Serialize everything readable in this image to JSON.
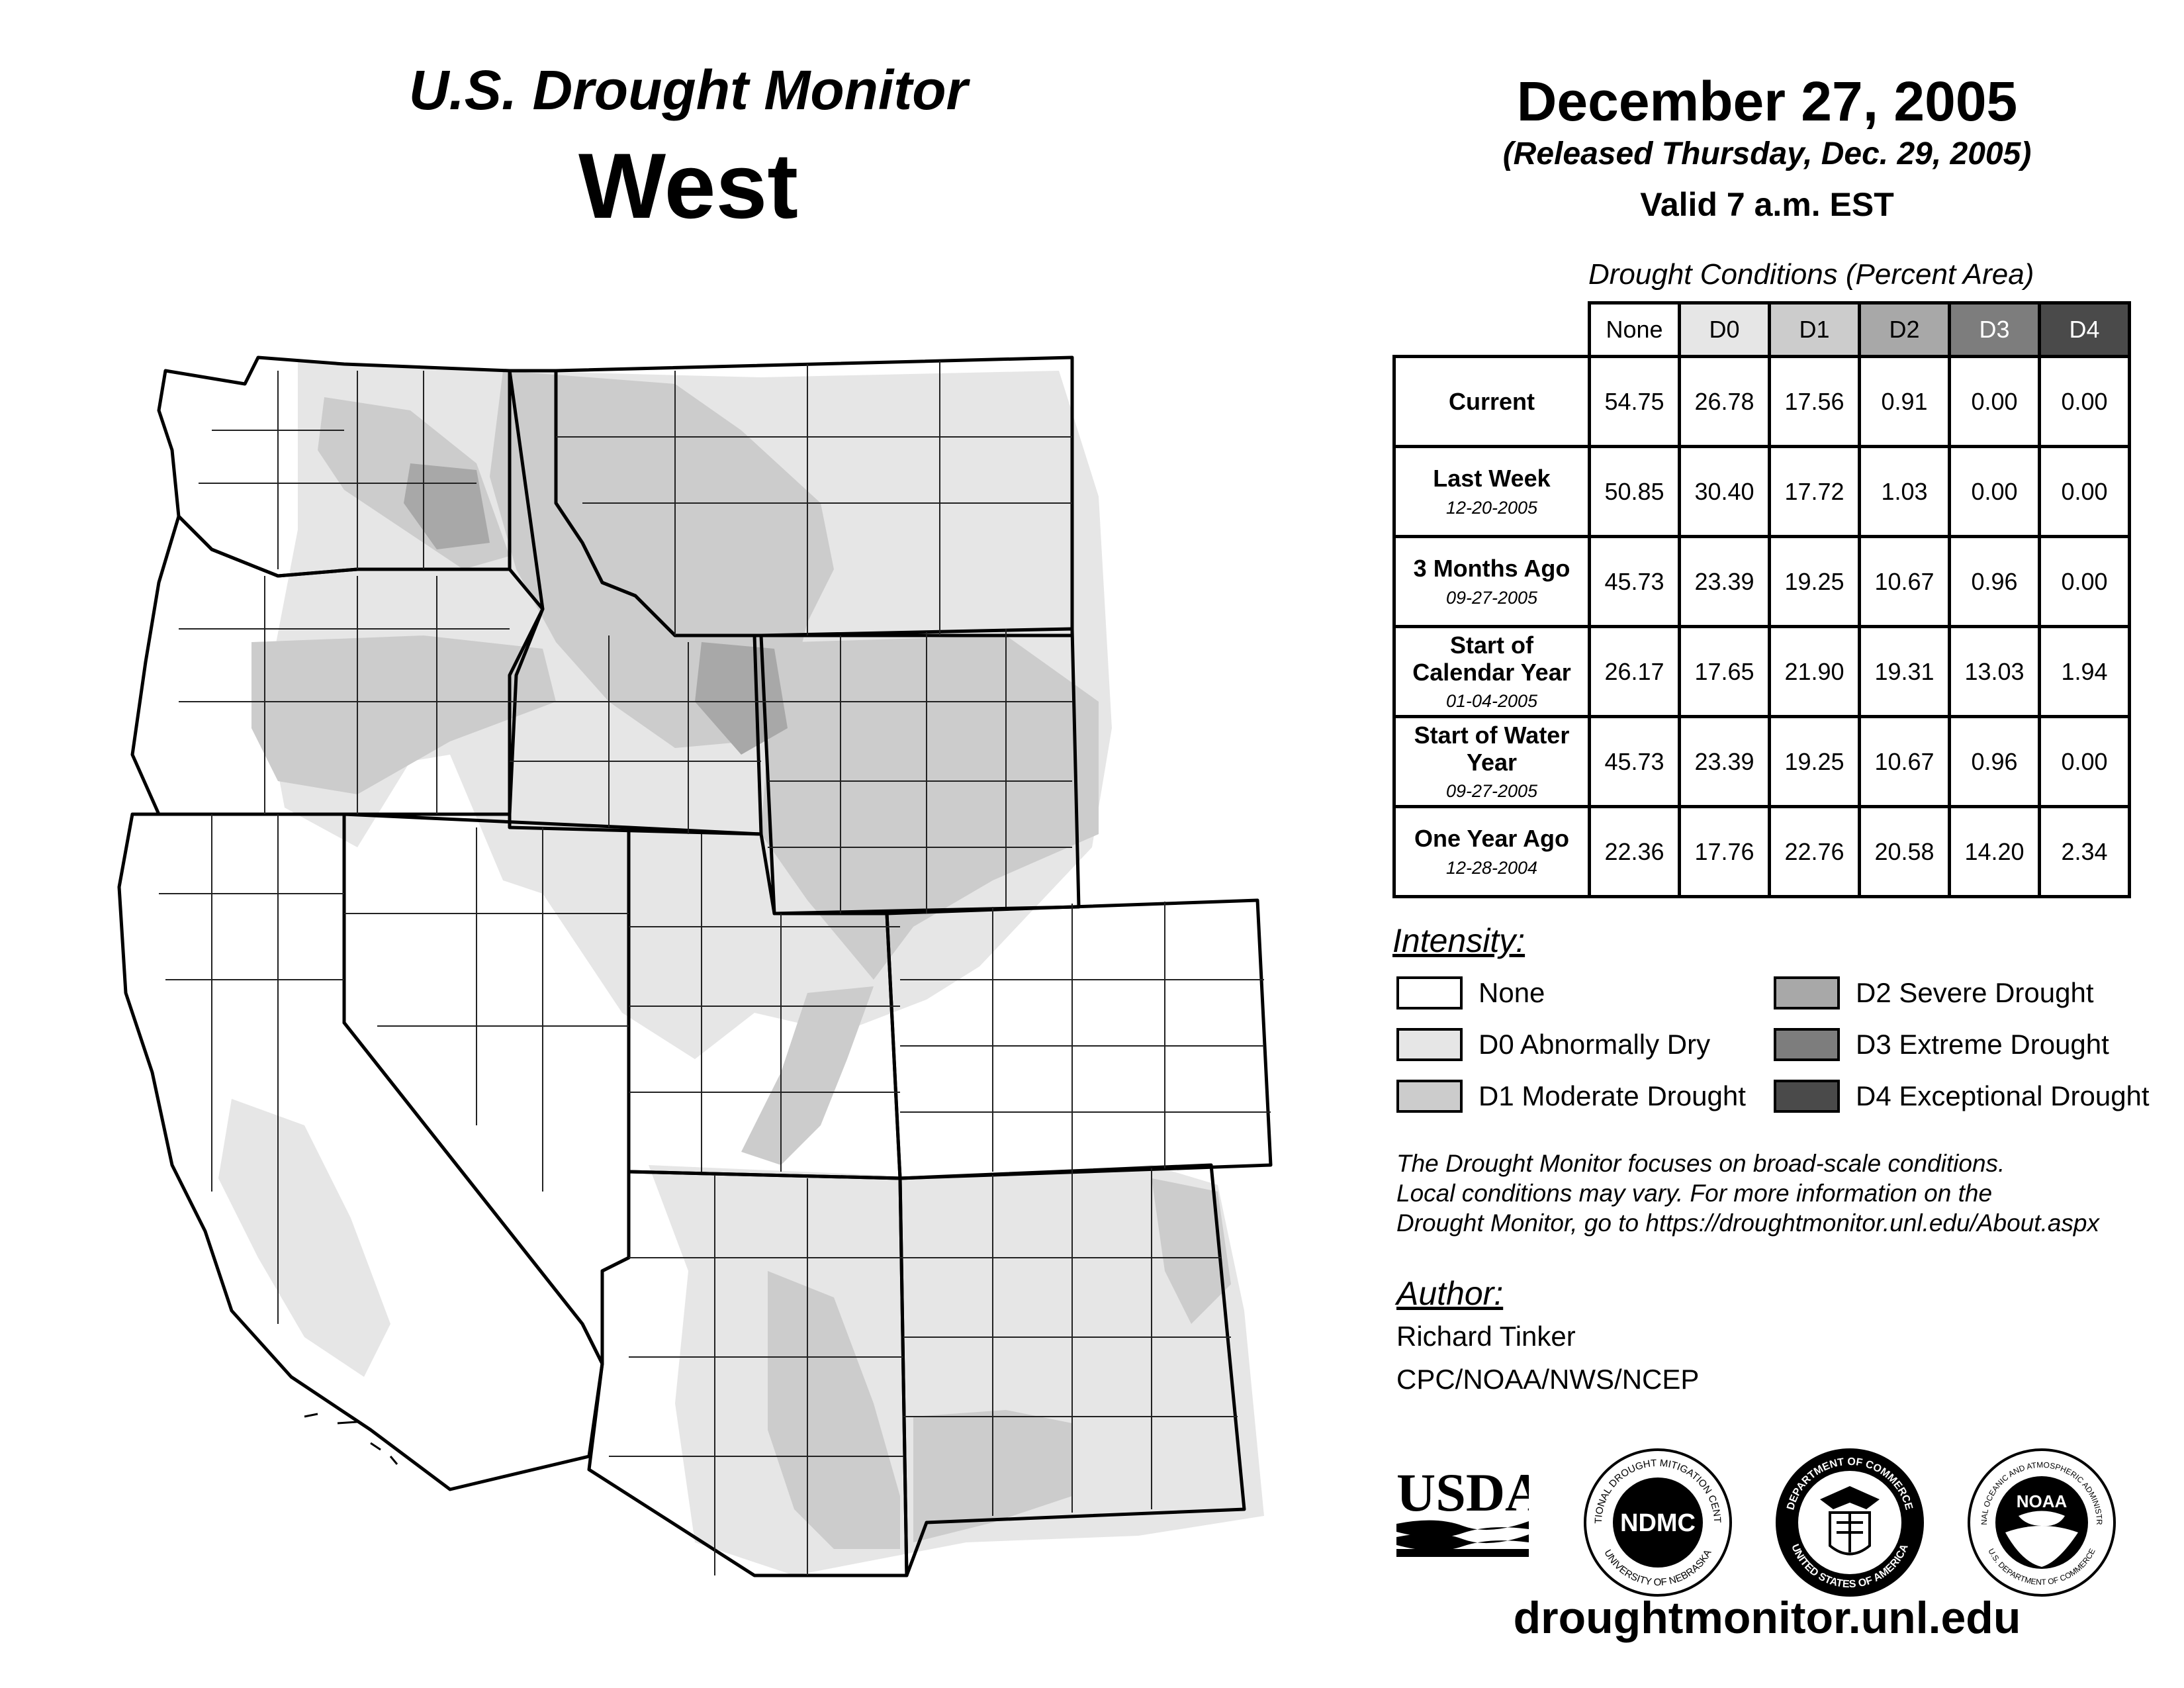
{
  "header": {
    "title_line1": "U.S. Drought Monitor",
    "title_line2": "West",
    "date": "December 27, 2005",
    "released": "(Released Thursday, Dec. 29, 2005)",
    "valid": "Valid 7 a.m. EST"
  },
  "table": {
    "caption": "Drought Conditions (Percent Area)",
    "columns": [
      "None",
      "D0",
      "D1",
      "D2",
      "D3",
      "D4"
    ],
    "column_colors": [
      "#ffffff",
      "#e6e6e6",
      "#cccccc",
      "#a8a8a8",
      "#7d7d7d",
      "#4a4a4a"
    ],
    "rows": [
      {
        "label": "Current",
        "sub": "",
        "values": [
          "54.75",
          "26.78",
          "17.56",
          "0.91",
          "0.00",
          "0.00"
        ]
      },
      {
        "label": "Last Week",
        "sub": "12-20-2005",
        "values": [
          "50.85",
          "30.40",
          "17.72",
          "1.03",
          "0.00",
          "0.00"
        ]
      },
      {
        "label": "3 Months Ago",
        "sub": "09-27-2005",
        "values": [
          "45.73",
          "23.39",
          "19.25",
          "10.67",
          "0.96",
          "0.00"
        ]
      },
      {
        "label": "Start of Calendar Year",
        "sub": "01-04-2005",
        "values": [
          "26.17",
          "17.65",
          "21.90",
          "19.31",
          "13.03",
          "1.94"
        ]
      },
      {
        "label": "Start of Water Year",
        "sub": "09-27-2005",
        "values": [
          "45.73",
          "23.39",
          "19.25",
          "10.67",
          "0.96",
          "0.00"
        ]
      },
      {
        "label": "One Year Ago",
        "sub": "12-28-2004",
        "values": [
          "22.36",
          "17.76",
          "22.76",
          "20.58",
          "14.20",
          "2.34"
        ]
      }
    ]
  },
  "legend": {
    "title": "Intensity:",
    "items": [
      {
        "label": "None",
        "color": "#ffffff"
      },
      {
        "label": "D0 Abnormally Dry",
        "color": "#e6e6e6"
      },
      {
        "label": "D1 Moderate Drought",
        "color": "#cccccc"
      },
      {
        "label": "D2 Severe Drought",
        "color": "#a8a8a8"
      },
      {
        "label": "D3 Extreme Drought",
        "color": "#7d7d7d"
      },
      {
        "label": "D4 Exceptional Drought",
        "color": "#4a4a4a"
      }
    ]
  },
  "note": {
    "line1": "The Drought Monitor focuses on broad-scale conditions.",
    "line2": "Local conditions may vary. For more information on the",
    "line3": "Drought Monitor, go to https://droughtmonitor.unl.edu/About.aspx"
  },
  "author": {
    "title": "Author:",
    "name": "Richard Tinker",
    "org": "CPC/NOAA/NWS/NCEP"
  },
  "logos": {
    "usda": "USDA",
    "ndmc": "NDMC",
    "ndmc_ring_top": "NATIONAL DROUGHT MITIGATION CENTER",
    "ndmc_ring_bottom": "UNIVERSITY OF NEBRASKA",
    "doc_ring_top": "DEPARTMENT OF COMMERCE",
    "doc_ring_bottom": "UNITED STATES OF AMERICA",
    "noaa": "NOAA",
    "noaa_ring_top": "NATIONAL OCEANIC AND ATMOSPHERIC ADMINISTRATION",
    "noaa_ring_bottom": "U.S. DEPARTMENT OF COMMERCE"
  },
  "website": "droughtmonitor.unl.edu"
}
